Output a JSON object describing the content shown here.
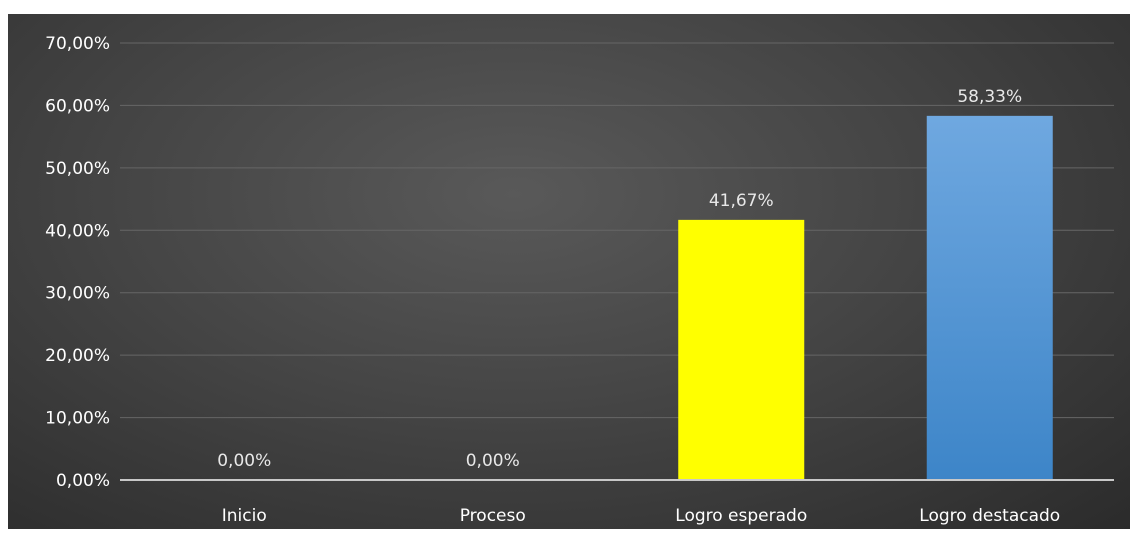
{
  "chart_data": {
    "type": "bar",
    "title": "",
    "xlabel": "",
    "ylabel": "",
    "categories": [
      "Inicio",
      "Proceso",
      "Logro esperado",
      "Logro destacado"
    ],
    "values": [
      0.0,
      0.0,
      41.67,
      58.33
    ],
    "data_labels": [
      "0,00%",
      "0,00%",
      "41,67%",
      "58,33%"
    ],
    "bar_colors": [
      "#ffff00",
      "#ffff00",
      "#ffff00",
      "#5b9bd5"
    ],
    "ylim": [
      0,
      70
    ],
    "yticks": [
      0,
      10,
      20,
      30,
      40,
      50,
      60,
      70
    ],
    "ytick_labels": [
      "0,00%",
      "10,00%",
      "20,00%",
      "30,00%",
      "40,00%",
      "50,00%",
      "60,00%",
      "70,00%"
    ],
    "grid": true,
    "legend": "none",
    "background_color": "#404040",
    "gridline_color": "#666666",
    "text_color": "#ffffff"
  }
}
